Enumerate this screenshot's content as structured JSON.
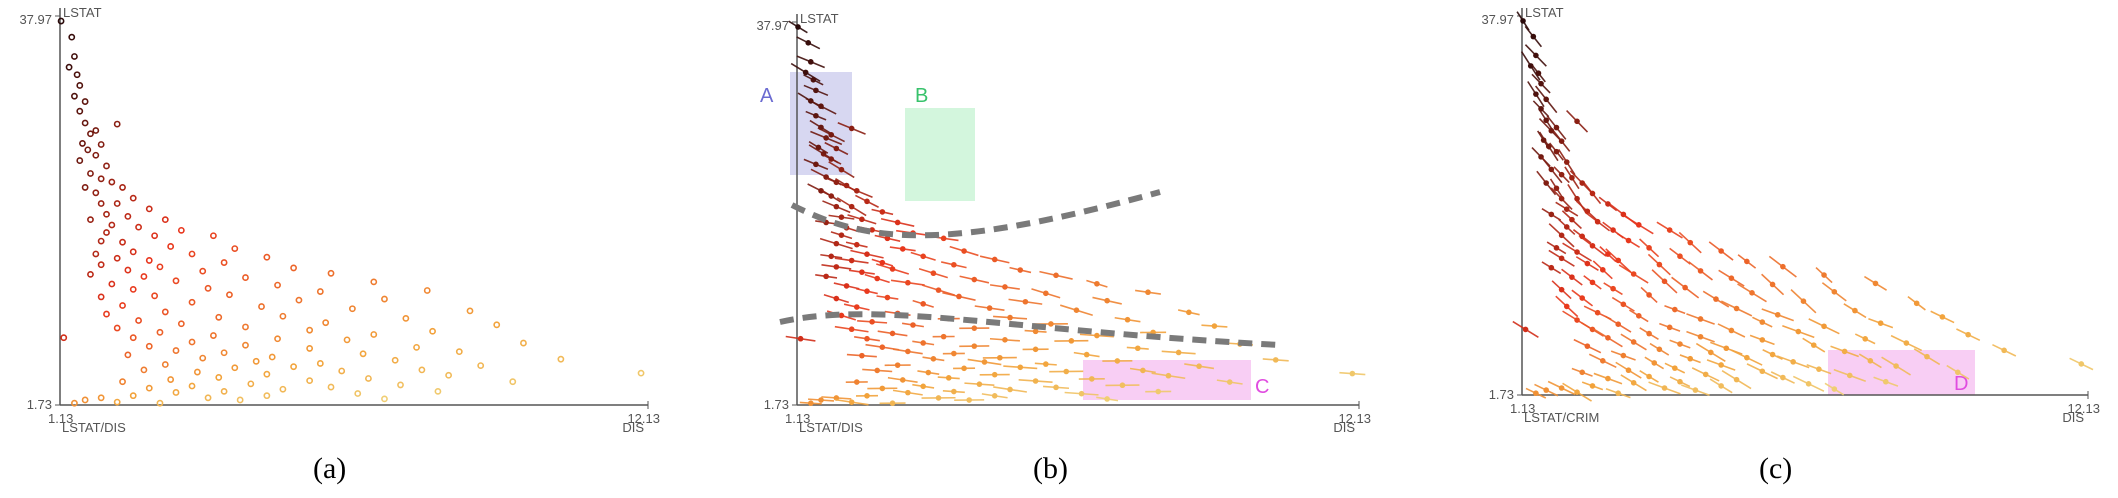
{
  "figure": {
    "captions": [
      "(a)",
      "(b)",
      "(c)"
    ]
  },
  "chart_data": [
    {
      "type": "scatter",
      "caption": "(a)",
      "x_range_label_min": "1.13",
      "x_range_label_max": "12.13",
      "y_range_label_min": "1.73",
      "y_range_label_max": "37.97",
      "xlim": [
        1.13,
        12.13
      ],
      "ylim": [
        1.73,
        37.97
      ],
      "ylabel": "LSTAT",
      "xlabel_left": "LSTAT/DIS",
      "xlabel_right": "DIS",
      "color_encoding": "LSTAT/DIS ratio (yellow = low, red = mid, black = high)",
      "colors": {
        "low": "#efe08a",
        "mid_low": "#f2a23a",
        "mid": "#e8341c",
        "high": "#2a0a0a"
      },
      "mark": "ring",
      "points": [
        [
          1.15,
          37.5
        ],
        [
          1.35,
          36.0
        ],
        [
          1.4,
          34.2
        ],
        [
          1.3,
          33.2
        ],
        [
          1.45,
          32.5
        ],
        [
          1.5,
          31.5
        ],
        [
          1.4,
          30.5
        ],
        [
          1.6,
          30.0
        ],
        [
          1.5,
          29.1
        ],
        [
          1.6,
          28.0
        ],
        [
          1.8,
          27.3
        ],
        [
          1.7,
          27.0
        ],
        [
          1.55,
          26.1
        ],
        [
          1.9,
          26.0
        ],
        [
          2.2,
          27.9
        ],
        [
          1.65,
          25.5
        ],
        [
          1.8,
          25.0
        ],
        [
          1.5,
          24.5
        ],
        [
          2.0,
          24.0
        ],
        [
          1.7,
          23.3
        ],
        [
          1.9,
          22.8
        ],
        [
          2.1,
          22.5
        ],
        [
          1.6,
          22.0
        ],
        [
          2.3,
          22.0
        ],
        [
          1.8,
          21.5
        ],
        [
          2.5,
          21.0
        ],
        [
          1.9,
          20.5
        ],
        [
          2.2,
          20.5
        ],
        [
          2.8,
          20.0
        ],
        [
          2.0,
          19.5
        ],
        [
          2.4,
          19.3
        ],
        [
          3.1,
          19.0
        ],
        [
          1.7,
          19.0
        ],
        [
          2.1,
          18.5
        ],
        [
          2.6,
          18.3
        ],
        [
          3.4,
          18.0
        ],
        [
          2.0,
          17.8
        ],
        [
          2.9,
          17.5
        ],
        [
          4.0,
          17.5
        ],
        [
          1.9,
          17.0
        ],
        [
          2.3,
          16.9
        ],
        [
          3.2,
          16.5
        ],
        [
          4.4,
          16.3
        ],
        [
          2.5,
          16.0
        ],
        [
          1.8,
          15.8
        ],
        [
          3.6,
          15.8
        ],
        [
          5.0,
          15.5
        ],
        [
          2.2,
          15.4
        ],
        [
          2.8,
          15.2
        ],
        [
          4.2,
          15.0
        ],
        [
          1.9,
          14.8
        ],
        [
          3.0,
          14.6
        ],
        [
          5.5,
          14.5
        ],
        [
          2.4,
          14.3
        ],
        [
          3.8,
          14.2
        ],
        [
          6.2,
          14.0
        ],
        [
          1.7,
          13.9
        ],
        [
          2.7,
          13.7
        ],
        [
          4.6,
          13.6
        ],
        [
          3.3,
          13.3
        ],
        [
          7.0,
          13.2
        ],
        [
          2.1,
          13.0
        ],
        [
          5.2,
          12.9
        ],
        [
          3.9,
          12.6
        ],
        [
          2.5,
          12.5
        ],
        [
          8.0,
          12.4
        ],
        [
          6.0,
          12.3
        ],
        [
          4.3,
          12.0
        ],
        [
          2.9,
          11.9
        ],
        [
          1.9,
          11.8
        ],
        [
          7.2,
          11.6
        ],
        [
          5.6,
          11.5
        ],
        [
          3.6,
          11.3
        ],
        [
          2.3,
          11.0
        ],
        [
          4.9,
          10.9
        ],
        [
          6.6,
          10.7
        ],
        [
          8.8,
          10.5
        ],
        [
          3.1,
          10.4
        ],
        [
          2.0,
          10.2
        ],
        [
          5.3,
          10.0
        ],
        [
          4.1,
          9.9
        ],
        [
          7.6,
          9.8
        ],
        [
          2.6,
          9.6
        ],
        [
          6.1,
          9.4
        ],
        [
          3.4,
          9.3
        ],
        [
          9.3,
          9.2
        ],
        [
          4.6,
          9.0
        ],
        [
          2.2,
          8.9
        ],
        [
          5.8,
          8.7
        ],
        [
          8.1,
          8.6
        ],
        [
          3.0,
          8.5
        ],
        [
          7.0,
          8.3
        ],
        [
          4.0,
          8.2
        ],
        [
          2.5,
          8.0
        ],
        [
          5.2,
          7.9
        ],
        [
          6.5,
          7.8
        ],
        [
          3.6,
          7.6
        ],
        [
          9.8,
          7.5
        ],
        [
          4.6,
          7.3
        ],
        [
          2.8,
          7.2
        ],
        [
          7.8,
          7.1
        ],
        [
          5.8,
          7.0
        ],
        [
          3.3,
          6.8
        ],
        [
          8.6,
          6.7
        ],
        [
          4.2,
          6.6
        ],
        [
          6.8,
          6.5
        ],
        [
          2.4,
          6.4
        ],
        [
          5.1,
          6.2
        ],
        [
          3.8,
          6.1
        ],
        [
          10.5,
          6.0
        ],
        [
          7.4,
          5.9
        ],
        [
          4.8,
          5.8
        ],
        [
          6.0,
          5.6
        ],
        [
          3.1,
          5.5
        ],
        [
          9.0,
          5.4
        ],
        [
          5.5,
          5.3
        ],
        [
          4.4,
          5.2
        ],
        [
          7.9,
          5.0
        ],
        [
          2.7,
          5.0
        ],
        [
          6.4,
          4.9
        ],
        [
          3.7,
          4.8
        ],
        [
          12.0,
          4.7
        ],
        [
          5.0,
          4.6
        ],
        [
          8.4,
          4.5
        ],
        [
          4.1,
          4.3
        ],
        [
          6.9,
          4.2
        ],
        [
          3.2,
          4.1
        ],
        [
          5.8,
          4.0
        ],
        [
          2.3,
          3.9
        ],
        [
          9.6,
          3.9
        ],
        [
          4.7,
          3.7
        ],
        [
          7.5,
          3.6
        ],
        [
          3.6,
          3.5
        ],
        [
          6.2,
          3.4
        ],
        [
          2.8,
          3.3
        ],
        [
          5.3,
          3.2
        ],
        [
          4.2,
          3.0
        ],
        [
          8.2,
          3.0
        ],
        [
          3.3,
          2.9
        ],
        [
          6.7,
          2.8
        ],
        [
          2.5,
          2.6
        ],
        [
          5.0,
          2.6
        ],
        [
          1.9,
          2.4
        ],
        [
          3.9,
          2.4
        ],
        [
          7.2,
          2.3
        ],
        [
          1.6,
          2.2
        ],
        [
          4.5,
          2.2
        ],
        [
          2.2,
          2.0
        ],
        [
          1.4,
          1.9
        ],
        [
          3.0,
          1.9
        ],
        [
          1.2,
          8.0
        ]
      ]
    },
    {
      "type": "scatter",
      "caption": "(b)",
      "x_range_label_min": "1.13",
      "x_range_label_max": "12.13",
      "y_range_label_min": "1.73",
      "y_range_label_max": "37.97",
      "xlim": [
        1.13,
        12.13
      ],
      "ylim": [
        1.73,
        37.97
      ],
      "ylabel": "LSTAT",
      "xlabel_left": "LSTAT/DIS",
      "xlabel_right": "DIS",
      "mark": "dot with gradient segment",
      "regions": [
        {
          "label": "A",
          "color": "#6b6bd1",
          "fill": "#c9c9ec"
        },
        {
          "label": "B",
          "color": "#37c26b",
          "fill": "#c4f3d2"
        },
        {
          "label": "C",
          "color": "#e04ce0",
          "fill": "#f6bdf0"
        }
      ],
      "points_ref": "same as (a)"
    },
    {
      "type": "scatter",
      "caption": "(c)",
      "x_range_label_min": "1.13",
      "x_range_label_max": "12.13",
      "y_range_label_min": "1.73",
      "y_range_label_max": "37.97",
      "xlim": [
        1.13,
        12.13
      ],
      "ylim": [
        1.73,
        37.97
      ],
      "ylabel": "LSTAT",
      "xlabel_left": "LSTAT/CRIM",
      "xlabel_right": "DIS",
      "mark": "dot with gradient segment",
      "regions": [
        {
          "label": "D",
          "color": "#e04ce0",
          "fill": "#f6bdf0"
        }
      ],
      "points_ref": "same as (a)"
    }
  ]
}
